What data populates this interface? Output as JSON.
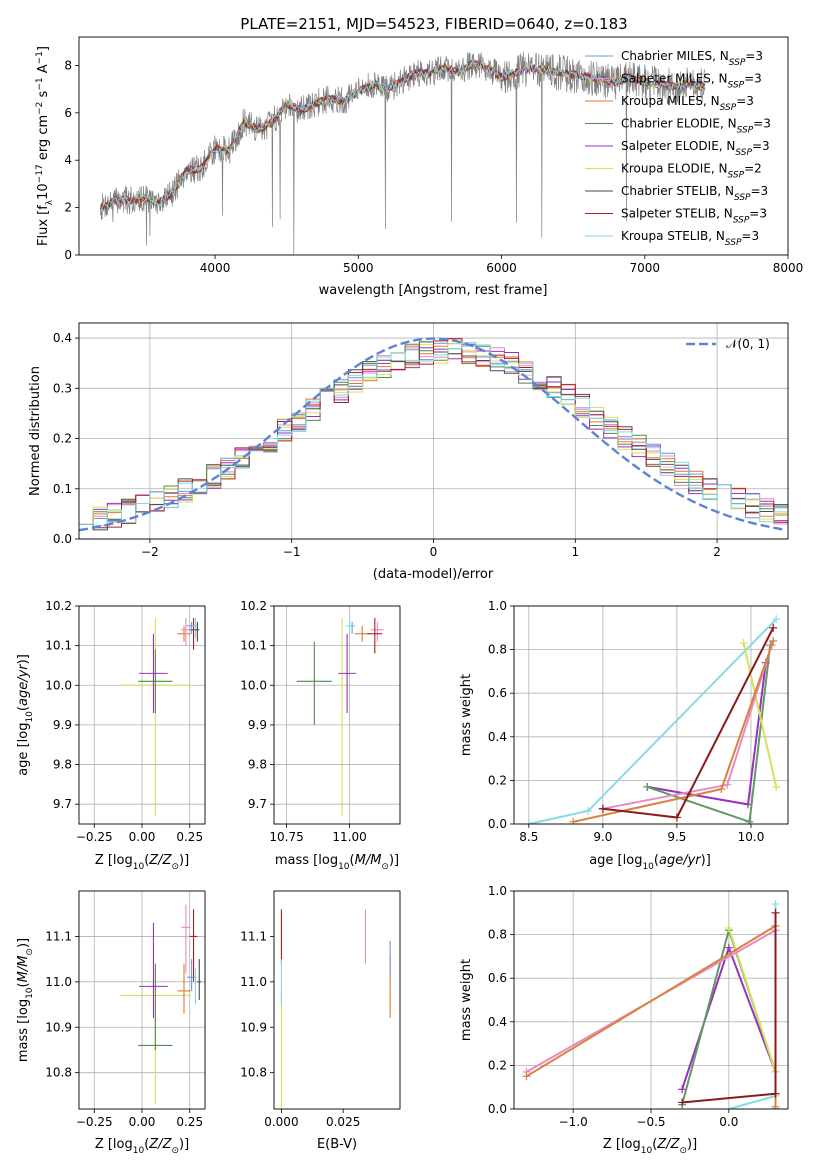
{
  "figure": {
    "title": "PLATE=2151, MJD=54523, FIBERID=0640, z=0.183"
  },
  "colors": {
    "models": {
      "chab_miles": "#6f94e0",
      "salp_miles": "#e88ac6",
      "krou_miles": "#e07a2e",
      "chab_elodie": "#4f8a4f",
      "salp_elodie": "#9b2fbf",
      "krou_elodie": "#d6e05a",
      "chab_stelib": "#4a4a4a",
      "salp_stelib": "#b01e1e",
      "krou_stelib": "#7fd9e3"
    },
    "data_spectrum": "#808080",
    "normal_curve": "#5b84d6",
    "mass_weight_lines": {
      "cyan": "#86dce5",
      "purple": "#9b2fbf",
      "green": "#5f9a5f",
      "yellow": "#d6e05a",
      "pink": "#e88ac6",
      "orange": "#d9823e",
      "darkred": "#8b1a1a"
    }
  },
  "chart_data": [
    {
      "id": "spectrum",
      "type": "line",
      "xlabel": "wavelength [Angstrom, rest frame]",
      "ylabel_main": "Flux [f",
      "ylabel_rest": "10",
      "ylabel_exp": "-17",
      "ylabel_units": " erg cm",
      "xlim": [
        3050,
        8000
      ],
      "ylim": [
        0,
        9.2
      ],
      "xticks": [
        "4000",
        "5000",
        "6000",
        "7000",
        "8000"
      ],
      "yticks": [
        "0",
        "2",
        "4",
        "6",
        "8"
      ],
      "grid": false,
      "legend_position": "upper right",
      "legend": [
        {
          "key": "chab_miles",
          "name": "Chabrier MILES",
          "nssp": "3"
        },
        {
          "key": "salp_miles",
          "name": "Salpeter MILES",
          "nssp": "3"
        },
        {
          "key": "krou_miles",
          "name": "Kroupa MILES",
          "nssp": "3"
        },
        {
          "key": "chab_elodie",
          "name": "Chabrier ELODIE",
          "nssp": "3"
        },
        {
          "key": "salp_elodie",
          "name": "Salpeter ELODIE",
          "nssp": "3"
        },
        {
          "key": "krou_elodie",
          "name": "Kroupa ELODIE",
          "nssp": "2"
        },
        {
          "key": "chab_stelib",
          "name": "Chabrier STELIB",
          "nssp": "3"
        },
        {
          "key": "salp_stelib",
          "name": "Salpeter STELIB",
          "nssp": "3"
        },
        {
          "key": "krou_stelib",
          "name": "Kroupa STELIB",
          "nssp": "3"
        }
      ],
      "model_continuum": {
        "x": [
          3200,
          3300,
          3400,
          3500,
          3600,
          3700,
          3800,
          3900,
          4000,
          4100,
          4200,
          4300,
          4400,
          4500,
          4600,
          4700,
          4800,
          4900,
          5000,
          5100,
          5200,
          5300,
          5400,
          5500,
          5600,
          5700,
          5800,
          5900,
          6000,
          6100,
          6200,
          6300,
          6400,
          6500,
          6600,
          6700,
          6800,
          6900,
          7000,
          7100,
          7200,
          7300,
          7400
        ],
        "y": [
          2.0,
          2.3,
          2.3,
          2.4,
          2.2,
          2.6,
          3.6,
          3.6,
          4.5,
          4.4,
          5.6,
          5.3,
          5.6,
          6.4,
          6.1,
          6.4,
          6.6,
          6.5,
          6.9,
          7.2,
          7.0,
          7.3,
          7.7,
          7.7,
          7.9,
          7.7,
          8.1,
          7.9,
          7.5,
          7.7,
          7.9,
          7.8,
          7.7,
          7.6,
          7.5,
          7.4,
          7.3,
          7.5,
          7.3,
          7.2,
          7.1,
          7.2,
          7.1
        ]
      },
      "noise_amplitude": 1.2
    },
    {
      "id": "residuals",
      "type": "step",
      "xlabel": "(data-model)/error",
      "ylabel": "Normed distribution",
      "xlim": [
        -2.5,
        2.5
      ],
      "ylim": [
        0,
        0.43
      ],
      "xticks": [
        -2,
        -1,
        0,
        1,
        2
      ],
      "xtick_labels": [
        "−2",
        "−1",
        "0",
        "1",
        "2"
      ],
      "yticks": [
        0,
        0.1,
        0.2,
        0.3,
        0.4
      ],
      "ytick_labels": [
        "0.0",
        "0.1",
        "0.2",
        "0.3",
        "0.4"
      ],
      "grid": true,
      "legend_position": "upper right",
      "legend_label": "𝒩(0, 1)",
      "bins": 50,
      "curve": "normal pdf, mean 0, sigma 1"
    },
    {
      "id": "Z_age",
      "type": "errorbar",
      "xlabel": "Z [log",
      "xlabel_full": "Z [log10(Z/Z⊙)]",
      "ylabel_full": "age [log10(age/yr)]",
      "xlim": [
        -0.33,
        0.33
      ],
      "ylim": [
        9.65,
        10.2
      ],
      "xticks": [
        -0.25,
        0.0,
        0.25
      ],
      "xtick_labels": [
        "−0.25",
        "0.00",
        "0.25"
      ],
      "yticks": [
        9.7,
        9.8,
        9.9,
        10.0,
        10.1,
        10.2
      ],
      "ytick_labels": [
        "9.7",
        "9.8",
        "9.9",
        "10.0",
        "10.1",
        "10.2"
      ],
      "grid": true,
      "points": [
        {
          "c": "krou_elodie",
          "x": 0.07,
          "y": 10.0,
          "xe": 0.37,
          "yl": 0.33,
          "yh": 0.17
        },
        {
          "c": "chab_elodie",
          "x": 0.07,
          "y": 10.01,
          "xe": 0.18,
          "yl": 0.08,
          "yh": 0.08
        },
        {
          "c": "salp_elodie",
          "x": 0.06,
          "y": 10.03,
          "xe": 0.15,
          "yl": 0.1,
          "yh": 0.1
        },
        {
          "c": "krou_miles",
          "x": 0.22,
          "y": 10.13,
          "xe": 0.07,
          "yl": 0.02,
          "yh": 0.02
        },
        {
          "c": "salp_miles",
          "x": 0.23,
          "y": 10.14,
          "xe": 0.05,
          "yl": 0.04,
          "yh": 0.03
        },
        {
          "c": "salp_stelib",
          "x": 0.27,
          "y": 10.14,
          "xe": 0.04,
          "yl": 0.05,
          "yh": 0.03
        },
        {
          "c": "chab_miles",
          "x": 0.26,
          "y": 10.15,
          "xe": 0.05,
          "yl": 0.02,
          "yh": 0.01
        },
        {
          "c": "krou_stelib",
          "x": 0.28,
          "y": 10.15,
          "xe": 0.03,
          "yl": 0.03,
          "yh": 0.02
        },
        {
          "c": "chab_stelib",
          "x": 0.29,
          "y": 10.14,
          "xe": 0.02,
          "yl": 0.03,
          "yh": 0.02
        }
      ]
    },
    {
      "id": "mass_age",
      "type": "errorbar",
      "xlabel_full": "mass [log10(M/M⊙)]",
      "xlim": [
        10.7,
        11.2
      ],
      "ylim": [
        9.65,
        10.2
      ],
      "xticks": [
        10.75,
        11.0
      ],
      "xtick_labels": [
        "10.75",
        "11.00"
      ],
      "yticks": [
        9.7,
        9.8,
        9.9,
        10.0,
        10.1,
        10.2
      ],
      "ytick_labels": [
        "9.7",
        "9.8",
        "9.9",
        "10.0",
        "10.1",
        "10.2"
      ],
      "grid": true,
      "points": [
        {
          "c": "krou_elodie",
          "x": 10.97,
          "y": 10.0,
          "xe": 0.03,
          "yl": 0.33,
          "yh": 0.17
        },
        {
          "c": "chab_elodie",
          "x": 10.86,
          "y": 10.01,
          "xe": 0.14,
          "yl": 0.11,
          "yh": 0.1
        },
        {
          "c": "salp_elodie",
          "x": 10.99,
          "y": 10.03,
          "xe": 0.07,
          "yl": 0.1,
          "yh": 0.1
        },
        {
          "c": "krou_miles",
          "x": 11.05,
          "y": 10.13,
          "xe": 0.06,
          "yl": 0.02,
          "yh": 0.02
        },
        {
          "c": "salp_miles",
          "x": 11.11,
          "y": 10.14,
          "xe": 0.05,
          "yl": 0.03,
          "yh": 0.02
        },
        {
          "c": "salp_stelib",
          "x": 11.1,
          "y": 10.13,
          "xe": 0.06,
          "yl": 0.05,
          "yh": 0.04
        },
        {
          "c": "chab_miles",
          "x": 11.01,
          "y": 10.15,
          "xe": 0.02,
          "yl": 0.02,
          "yh": 0.01
        },
        {
          "c": "krou_stelib",
          "x": 11.0,
          "y": 10.15,
          "xe": 0.03,
          "yl": 0.02,
          "yh": 0.02
        }
      ]
    },
    {
      "id": "age_weight",
      "type": "line",
      "xlabel_full": "age [log10(age/yr)]",
      "ylabel": "mass weight",
      "xlim": [
        8.4,
        10.25
      ],
      "ylim": [
        0,
        1.0
      ],
      "xticks": [
        8.5,
        9.0,
        9.5,
        10.0
      ],
      "xtick_labels": [
        "8.5",
        "9.0",
        "9.5",
        "10.0"
      ],
      "yticks": [
        0,
        0.2,
        0.4,
        0.6,
        0.8,
        1.0
      ],
      "ytick_labels": [
        "0.0",
        "0.2",
        "0.4",
        "0.6",
        "0.8",
        "1.0"
      ],
      "grid": true,
      "series": [
        {
          "c": "cyan",
          "x": [
            8.5,
            8.9,
            10.17
          ],
          "y": [
            0.0,
            0.06,
            0.94
          ]
        },
        {
          "c": "purple",
          "x": [
            9.3,
            9.98,
            10.1
          ],
          "y": [
            0.17,
            0.09,
            0.74
          ]
        },
        {
          "c": "green",
          "x": [
            9.3,
            9.99,
            10.13
          ],
          "y": [
            0.17,
            0.01,
            0.82
          ]
        },
        {
          "c": "yellow",
          "x": [
            9.95,
            10.17
          ],
          "y": [
            0.83,
            0.17
          ]
        },
        {
          "c": "pink",
          "x": [
            9.0,
            9.84,
            10.14
          ],
          "y": [
            0.07,
            0.18,
            0.82
          ]
        },
        {
          "c": "orange",
          "x": [
            8.8,
            9.8,
            10.15
          ],
          "y": [
            0.01,
            0.16,
            0.84
          ]
        },
        {
          "c": "darkred",
          "x": [
            9.0,
            9.5,
            10.15
          ],
          "y": [
            0.07,
            0.03,
            0.9
          ]
        }
      ]
    },
    {
      "id": "Z_mass",
      "type": "errorbar",
      "xlabel_full": "Z [log10(Z/Z⊙)]",
      "ylabel_full": "mass [log10(M/M⊙)]",
      "xlim": [
        -0.33,
        0.33
      ],
      "ylim": [
        10.72,
        11.2
      ],
      "xticks": [
        -0.25,
        0.0,
        0.25
      ],
      "xtick_labels": [
        "−0.25",
        "0.00",
        "0.25"
      ],
      "yticks": [
        10.8,
        10.9,
        11.0,
        11.1
      ],
      "ytick_labels": [
        "10.8",
        "10.9",
        "11.0",
        "11.1"
      ],
      "grid": true,
      "points": [
        {
          "c": "krou_elodie",
          "x": 0.07,
          "y": 10.97,
          "xe": 0.37,
          "yl": 0.24,
          "yh": 0.06
        },
        {
          "c": "chab_elodie",
          "x": 0.07,
          "y": 10.86,
          "xe": 0.18,
          "yl": 0.01,
          "yh": 0.18
        },
        {
          "c": "salp_elodie",
          "x": 0.06,
          "y": 10.99,
          "xe": 0.15,
          "yl": 0.07,
          "yh": 0.14
        },
        {
          "c": "krou_miles",
          "x": 0.22,
          "y": 10.98,
          "xe": 0.07,
          "yl": 0.05,
          "yh": 0.06
        },
        {
          "c": "salp_miles",
          "x": 0.23,
          "y": 11.12,
          "xe": 0.05,
          "yl": 0.1,
          "yh": 0.05
        },
        {
          "c": "salp_stelib",
          "x": 0.27,
          "y": 11.1,
          "xe": 0.04,
          "yl": 0.1,
          "yh": 0.06
        },
        {
          "c": "chab_miles",
          "x": 0.26,
          "y": 11.01,
          "xe": 0.05,
          "yl": 0.03,
          "yh": 0.04
        },
        {
          "c": "krou_stelib",
          "x": 0.28,
          "y": 11.0,
          "xe": 0.03,
          "yl": 0.05,
          "yh": 0.03
        },
        {
          "c": "chab_stelib",
          "x": 0.3,
          "y": 11.0,
          "xe": 0.02,
          "yl": 0.04,
          "yh": 0.05
        }
      ]
    },
    {
      "id": "ebv_mass",
      "type": "errorbar",
      "xlabel": "E(B-V)",
      "xlim": [
        -0.003,
        0.048
      ],
      "ylim": [
        10.72,
        11.2
      ],
      "xticks": [
        0.0,
        0.025
      ],
      "xtick_labels": [
        "0.000",
        "0.025"
      ],
      "yticks": [
        10.8,
        10.9,
        11.0,
        11.1
      ],
      "ytick_labels": [
        "10.8",
        "10.9",
        "11.0",
        "11.1"
      ],
      "grid": false,
      "points": [
        {
          "c": "salp_stelib",
          "x": 0.0,
          "y": 11.1,
          "xe": 0,
          "yl": 0.06,
          "yh": 0.06
        },
        {
          "c": "krou_elodie",
          "x": 0.0,
          "y": 10.95,
          "xe": 0,
          "yl": 0.23,
          "yh": 0.03
        },
        {
          "c": "krou_stelib",
          "x": 0.0,
          "y": 11.0,
          "xe": 0,
          "yl": 0.05,
          "yh": 0.05
        },
        {
          "c": "salp_miles",
          "x": 0.034,
          "y": 11.1,
          "xe": 0,
          "yl": 0.06,
          "yh": 0.06
        },
        {
          "c": "krou_miles",
          "x": 0.044,
          "y": 10.99,
          "xe": 0,
          "yl": 0.07,
          "yh": 0.07
        },
        {
          "c": "chab_miles",
          "x": 0.044,
          "y": 11.05,
          "xe": 0,
          "yl": 0.04,
          "yh": 0.04
        }
      ]
    },
    {
      "id": "Z_weight",
      "type": "line",
      "xlabel_full": "Z [log10(Z/Z⊙)]",
      "ylabel": "mass weight",
      "xlim": [
        -1.38,
        0.38
      ],
      "ylim": [
        0,
        1.0
      ],
      "xticks": [
        -1.0,
        -0.5,
        0.0
      ],
      "xtick_labels": [
        "−1.0",
        "−0.5",
        "0.0"
      ],
      "yticks": [
        0,
        0.2,
        0.4,
        0.6,
        0.8,
        1.0
      ],
      "ytick_labels": [
        "0.0",
        "0.2",
        "0.4",
        "0.6",
        "0.8",
        "1.0"
      ],
      "grid": true,
      "series": [
        {
          "c": "cyan",
          "x": [
            0.0,
            0.3,
            0.3
          ],
          "y": [
            0.0,
            0.06,
            0.94
          ]
        },
        {
          "c": "purple",
          "x": [
            -0.3,
            0.0,
            0.3,
            0.3
          ],
          "y": [
            0.09,
            0.74,
            0.17,
            0.0
          ]
        },
        {
          "c": "green",
          "x": [
            -0.3,
            0.0,
            0.3,
            0.3
          ],
          "y": [
            0.02,
            0.82,
            0.17,
            0.0
          ]
        },
        {
          "c": "yellow",
          "x": [
            0.0,
            0.3
          ],
          "y": [
            0.83,
            0.17
          ]
        },
        {
          "c": "pink",
          "x": [
            -1.3,
            0.3,
            0.3
          ],
          "y": [
            0.17,
            0.82,
            0.0
          ]
        },
        {
          "c": "orange",
          "x": [
            -1.3,
            0.3,
            0.3
          ],
          "y": [
            0.15,
            0.84,
            0.01
          ]
        },
        {
          "c": "darkred",
          "x": [
            -0.3,
            0.3,
            0.3
          ],
          "y": [
            0.03,
            0.07,
            0.9
          ]
        }
      ]
    }
  ]
}
